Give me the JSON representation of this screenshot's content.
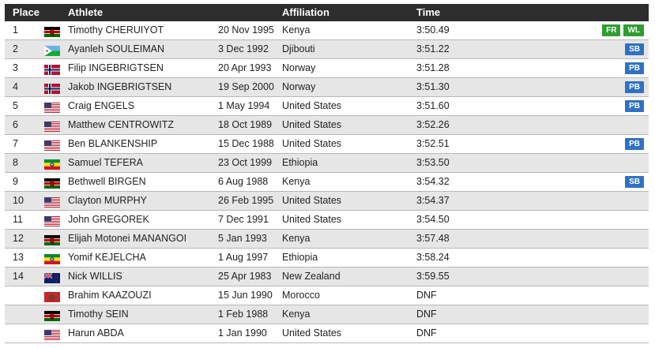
{
  "header": {
    "place": "Place",
    "athlete": "Athlete",
    "affiliation": "Affiliation",
    "time": "Time"
  },
  "colors": {
    "header_bg": "#2d2d2d",
    "alt_row": "#e6e6e6",
    "badge_green": "#2e9e2e",
    "badge_blue": "#2f72c4"
  },
  "rows": [
    {
      "place": "1",
      "flag": "KEN",
      "name": "Timothy CHERUIYOT",
      "dob": "20 Nov 1995",
      "affiliation": "Kenya",
      "time": "3:50.49",
      "badges": [
        {
          "label": "FR",
          "color": "green"
        },
        {
          "label": "WL",
          "color": "green"
        }
      ]
    },
    {
      "place": "2",
      "flag": "DJI",
      "name": "Ayanleh SOULEIMAN",
      "dob": "3 Dec 1992",
      "affiliation": "Djibouti",
      "time": "3:51.22",
      "badges": [
        {
          "label": "SB",
          "color": "blue"
        }
      ]
    },
    {
      "place": "3",
      "flag": "NOR",
      "name": "Filip INGEBRIGTSEN",
      "dob": "20 Apr 1993",
      "affiliation": "Norway",
      "time": "3:51.28",
      "badges": [
        {
          "label": "PB",
          "color": "blue"
        }
      ]
    },
    {
      "place": "4",
      "flag": "NOR",
      "name": "Jakob INGEBRIGTSEN",
      "dob": "19 Sep 2000",
      "affiliation": "Norway",
      "time": "3:51.30",
      "badges": [
        {
          "label": "PB",
          "color": "blue"
        }
      ]
    },
    {
      "place": "5",
      "flag": "USA",
      "name": "Craig ENGELS",
      "dob": "1 May 1994",
      "affiliation": "United States",
      "time": "3:51.60",
      "badges": [
        {
          "label": "PB",
          "color": "blue"
        }
      ]
    },
    {
      "place": "6",
      "flag": "USA",
      "name": "Matthew CENTROWITZ",
      "dob": "18 Oct 1989",
      "affiliation": "United States",
      "time": "3:52.26",
      "badges": []
    },
    {
      "place": "7",
      "flag": "USA",
      "name": "Ben BLANKENSHIP",
      "dob": "15 Dec 1988",
      "affiliation": "United States",
      "time": "3:52.51",
      "badges": [
        {
          "label": "PB",
          "color": "blue"
        }
      ]
    },
    {
      "place": "8",
      "flag": "ETH",
      "name": "Samuel TEFERA",
      "dob": "23 Oct 1999",
      "affiliation": "Ethiopia",
      "time": "3:53.50",
      "badges": []
    },
    {
      "place": "9",
      "flag": "KEN",
      "name": "Bethwell BIRGEN",
      "dob": "6 Aug 1988",
      "affiliation": "Kenya",
      "time": "3:54.32",
      "badges": [
        {
          "label": "SB",
          "color": "blue"
        }
      ]
    },
    {
      "place": "10",
      "flag": "USA",
      "name": "Clayton MURPHY",
      "dob": "26 Feb 1995",
      "affiliation": "United States",
      "time": "3:54.37",
      "badges": []
    },
    {
      "place": "11",
      "flag": "USA",
      "name": "John GREGOREK",
      "dob": "7 Dec 1991",
      "affiliation": "United States",
      "time": "3:54.50",
      "badges": []
    },
    {
      "place": "12",
      "flag": "KEN",
      "name": "Elijah Motonei MANANGOI",
      "dob": "5 Jan 1993",
      "affiliation": "Kenya",
      "time": "3:57.48",
      "badges": []
    },
    {
      "place": "13",
      "flag": "ETH",
      "name": "Yomif KEJELCHA",
      "dob": "1 Aug 1997",
      "affiliation": "Ethiopia",
      "time": "3:58.24",
      "badges": []
    },
    {
      "place": "14",
      "flag": "NZL",
      "name": "Nick WILLIS",
      "dob": "25 Apr 1983",
      "affiliation": "New Zealand",
      "time": "3:59.55",
      "badges": []
    },
    {
      "place": "",
      "flag": "MAR",
      "name": "Brahim KAAZOUZI",
      "dob": "15 Jun 1990",
      "affiliation": "Morocco",
      "time": "DNF",
      "badges": []
    },
    {
      "place": "",
      "flag": "KEN",
      "name": "Timothy SEIN",
      "dob": "1 Feb 1988",
      "affiliation": "Kenya",
      "time": "DNF",
      "badges": []
    },
    {
      "place": "",
      "flag": "USA",
      "name": "Harun ABDA",
      "dob": "1 Jan 1990",
      "affiliation": "United States",
      "time": "DNF",
      "badges": []
    }
  ]
}
